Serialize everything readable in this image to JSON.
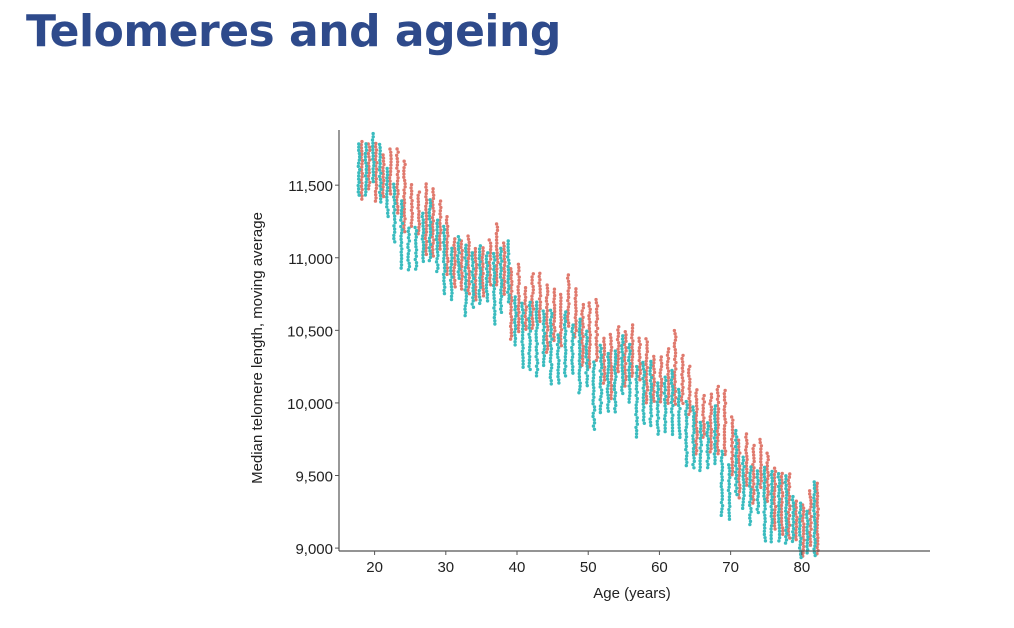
{
  "slide": {
    "title": "Telomeres and ageing"
  },
  "chart_data": {
    "type": "scatter",
    "title": "",
    "xlabel": "Age (years)",
    "ylabel": "Median telomere length, moving average",
    "xlim": [
      15,
      98
    ],
    "ylim": [
      8980,
      11880
    ],
    "xticks": [
      20,
      30,
      40,
      50,
      60,
      70,
      80
    ],
    "xtick_labels": [
      "20",
      "30",
      "40",
      "50",
      "60",
      "70",
      "80"
    ],
    "yticks": [
      9000,
      9500,
      10000,
      10500,
      11000,
      11500
    ],
    "ytick_labels": [
      "9,000",
      "9,500",
      "10,000",
      "10,500",
      "11,000",
      "11,500"
    ],
    "grid": false,
    "legend": "none",
    "colors": {
      "series_a": "#e07a6e",
      "series_b": "#3bbcbf",
      "axis": "#555555",
      "title": "#2e4a8b"
    },
    "series": [
      {
        "color": "#e07a6e",
        "points": [
          [
            18,
            11600
          ],
          [
            19,
            11620
          ],
          [
            20,
            11580
          ],
          [
            21,
            11560
          ],
          [
            22,
            11590
          ],
          [
            23,
            11520
          ],
          [
            24,
            11420
          ],
          [
            25,
            11350
          ],
          [
            26,
            11300
          ],
          [
            27,
            11260
          ],
          [
            28,
            11240
          ],
          [
            29,
            11220
          ],
          [
            30,
            11080
          ],
          [
            31,
            10960
          ],
          [
            32,
            10940
          ],
          [
            33,
            10940
          ],
          [
            34,
            10880
          ],
          [
            35,
            10900
          ],
          [
            36,
            10960
          ],
          [
            37,
            11020
          ],
          [
            38,
            10920
          ],
          [
            39,
            10680
          ],
          [
            40,
            10720
          ],
          [
            41,
            10640
          ],
          [
            42,
            10700
          ],
          [
            43,
            10720
          ],
          [
            44,
            10580
          ],
          [
            45,
            10600
          ],
          [
            46,
            10560
          ],
          [
            47,
            10700
          ],
          [
            48,
            10620
          ],
          [
            49,
            10460
          ],
          [
            50,
            10460
          ],
          [
            51,
            10500
          ],
          [
            52,
            10280
          ],
          [
            53,
            10240
          ],
          [
            54,
            10360
          ],
          [
            55,
            10300
          ],
          [
            56,
            10360
          ],
          [
            57,
            10300
          ],
          [
            58,
            10220
          ],
          [
            59,
            10160
          ],
          [
            60,
            10160
          ],
          [
            61,
            10180
          ],
          [
            62,
            10240
          ],
          [
            63,
            10160
          ],
          [
            64,
            10080
          ],
          [
            65,
            9860
          ],
          [
            66,
            9900
          ],
          [
            67,
            9860
          ],
          [
            68,
            9880
          ],
          [
            69,
            9860
          ],
          [
            70,
            9700
          ],
          [
            71,
            9540
          ],
          [
            72,
            9600
          ],
          [
            73,
            9500
          ],
          [
            74,
            9580
          ],
          [
            75,
            9480
          ],
          [
            76,
            9340
          ],
          [
            77,
            9300
          ],
          [
            78,
            9280
          ],
          [
            79,
            9180
          ],
          [
            80,
            9120
          ],
          [
            81,
            9200
          ],
          [
            82,
            9200
          ]
        ]
      },
      {
        "color": "#3bbcbf",
        "points": [
          [
            18,
            11600
          ],
          [
            19,
            11600
          ],
          [
            20,
            11680
          ],
          [
            21,
            11580
          ],
          [
            22,
            11440
          ],
          [
            23,
            11300
          ],
          [
            24,
            11150
          ],
          [
            25,
            11060
          ],
          [
            26,
            11060
          ],
          [
            27,
            11140
          ],
          [
            28,
            11180
          ],
          [
            29,
            11080
          ],
          [
            30,
            10980
          ],
          [
            31,
            10880
          ],
          [
            32,
            11000
          ],
          [
            33,
            10840
          ],
          [
            34,
            10840
          ],
          [
            35,
            10880
          ],
          [
            36,
            10860
          ],
          [
            37,
            10780
          ],
          [
            38,
            10840
          ],
          [
            39,
            10900
          ],
          [
            40,
            10560
          ],
          [
            41,
            10460
          ],
          [
            42,
            10460
          ],
          [
            43,
            10440
          ],
          [
            44,
            10440
          ],
          [
            45,
            10380
          ],
          [
            46,
            10300
          ],
          [
            47,
            10400
          ],
          [
            48,
            10360
          ],
          [
            49,
            10320
          ],
          [
            50,
            10300
          ],
          [
            51,
            10040
          ],
          [
            52,
            10160
          ],
          [
            53,
            10140
          ],
          [
            54,
            10140
          ],
          [
            55,
            10260
          ],
          [
            56,
            10200
          ],
          [
            57,
            10000
          ],
          [
            58,
            10060
          ],
          [
            59,
            10060
          ],
          [
            60,
            9960
          ],
          [
            61,
            9980
          ],
          [
            62,
            10000
          ],
          [
            63,
            9920
          ],
          [
            64,
            9780
          ],
          [
            65,
            9760
          ],
          [
            66,
            9700
          ],
          [
            67,
            9700
          ],
          [
            68,
            9780
          ],
          [
            69,
            9440
          ],
          [
            70,
            9380
          ],
          [
            71,
            9580
          ],
          [
            72,
            9440
          ],
          [
            73,
            9360
          ],
          [
            74,
            9380
          ],
          [
            75,
            9300
          ],
          [
            76,
            9280
          ],
          [
            77,
            9280
          ],
          [
            78,
            9260
          ],
          [
            79,
            9200
          ],
          [
            80,
            9120
          ],
          [
            81,
            9100
          ],
          [
            82,
            9200
          ]
        ]
      }
    ]
  }
}
